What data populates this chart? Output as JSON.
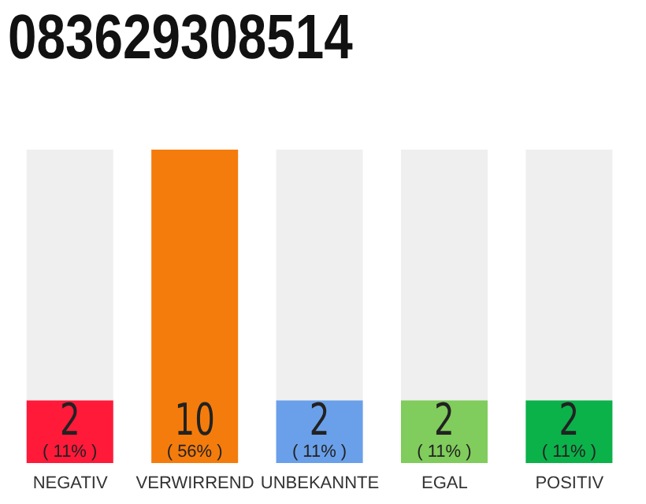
{
  "chart_data": {
    "type": "bar",
    "title": "083629308514",
    "categories": [
      "NEGATIV",
      "VERWIRREND",
      "UNBEKANNTE",
      "EGAL",
      "POSITIV"
    ],
    "values": [
      2,
      10,
      2,
      2,
      2
    ],
    "colors": [
      "#ff1a3a",
      "#f47c0c",
      "#6aa0ea",
      "#80cc5c",
      "#0bb24a"
    ],
    "value_labels": [
      "2 ( 11% )",
      "10 ( 56% )",
      "2 ( 11% )",
      "2 ( 11% )",
      "2 ( 11% )"
    ],
    "grid": false,
    "legend": false
  }
}
